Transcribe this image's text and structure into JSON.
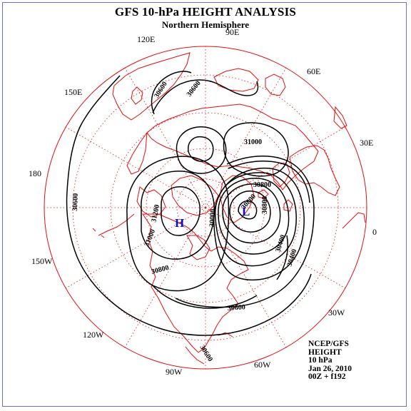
{
  "title": "GFS 10-hPa HEIGHT ANALYSIS",
  "subtitle": "Northern Hemisphere",
  "longitude_labels": [
    {
      "id": "lon-90e",
      "text": "90E"
    },
    {
      "id": "lon-60e",
      "text": "60E"
    },
    {
      "id": "lon-30e",
      "text": "30E"
    },
    {
      "id": "lon-0",
      "text": "0"
    },
    {
      "id": "lon-30w",
      "text": "30W"
    },
    {
      "id": "lon-60w",
      "text": "60W"
    },
    {
      "id": "lon-90w",
      "text": "90W"
    },
    {
      "id": "lon-120w",
      "text": "120W"
    },
    {
      "id": "lon-150w",
      "text": "150W"
    },
    {
      "id": "lon-180",
      "text": "180"
    },
    {
      "id": "lon-150e",
      "text": "150E"
    },
    {
      "id": "lon-120e",
      "text": "120E"
    }
  ],
  "contour_labels": [
    "30600",
    "30600",
    "31000",
    "30800",
    "31200",
    "31000",
    "30800",
    "30600",
    "30600",
    "30600",
    "30800",
    "30400",
    "30400",
    "30000",
    "30800"
  ],
  "centers": [
    {
      "symbol": "H",
      "type": "high",
      "color": "#1010c0"
    },
    {
      "symbol": "L",
      "type": "low",
      "color": "#1010c0"
    }
  ],
  "info": {
    "source": "NCEP/GFS",
    "field": "HEIGHT",
    "level": "10 hPa",
    "date": "Jan 26, 2010",
    "valid": "00Z + f192"
  },
  "colors": {
    "coastline": "#e01010",
    "graticule": "#e01010",
    "contour": "#000000",
    "frame": "#6f6fd0",
    "centers": "#1010c0"
  }
}
